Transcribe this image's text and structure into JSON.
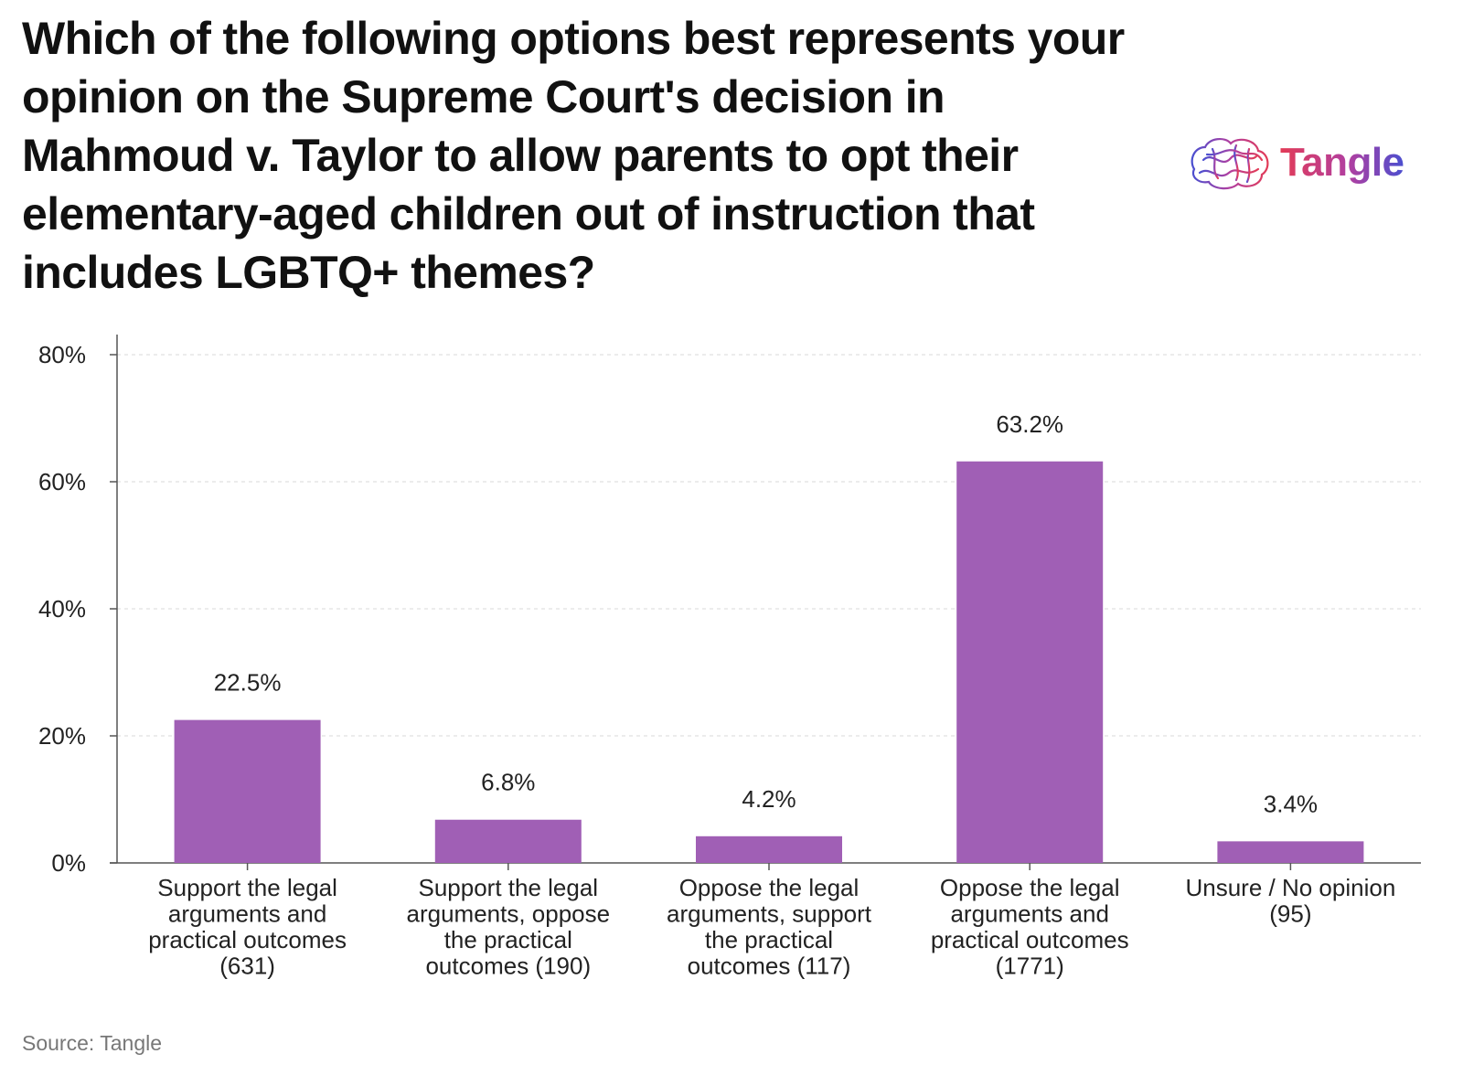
{
  "title": "Which of the following options best represents your opinion on the Supreme Court's decision in Mahmoud v. Taylor to allow parents to opt their elementary-aged children out of instruction that includes LGBTQ+ themes?",
  "logo": {
    "text": "Tangle",
    "icon": "brain-icon"
  },
  "source": "Source: Tangle",
  "colors": {
    "bar": "#a05fb5",
    "axis": "#555555",
    "grid": "#e6e6e6",
    "text": "#222222"
  },
  "chart_data": {
    "type": "bar",
    "categories": [
      "Support the legal arguments and practical outcomes (631)",
      "Support the legal arguments, oppose the practical outcomes (190)",
      "Oppose the legal arguments, support the practical outcomes (117)",
      "Oppose the legal arguments and practical outcomes (1771)",
      "Unsure / No opinion (95)"
    ],
    "category_lines": [
      [
        "Support the legal",
        "arguments and",
        "practical outcomes",
        "(631)"
      ],
      [
        "Support the legal",
        "arguments, oppose",
        "the practical",
        "outcomes (190)"
      ],
      [
        "Oppose the legal",
        "arguments, support",
        "the practical",
        "outcomes (117)"
      ],
      [
        "Oppose the legal",
        "arguments and",
        "practical outcomes",
        "(1771)"
      ],
      [
        "Unsure / No opinion",
        "(95)"
      ]
    ],
    "values": [
      22.5,
      6.8,
      4.2,
      63.2,
      3.4
    ],
    "data_labels": [
      "22.5%",
      "6.8%",
      "4.2%",
      "63.2%",
      "3.4%"
    ],
    "ylim": [
      0,
      80
    ],
    "yticks": [
      0,
      20,
      40,
      60,
      80
    ],
    "ytick_labels": [
      "0%",
      "20%",
      "40%",
      "60%",
      "80%"
    ],
    "grid": true,
    "xlabel": "",
    "ylabel": ""
  }
}
